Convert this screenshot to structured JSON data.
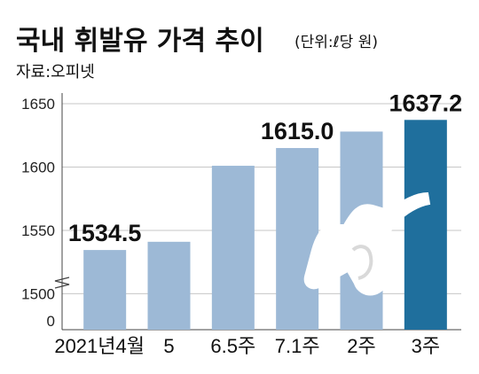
{
  "header": {
    "title": "국내 휘발유 가격 추이",
    "unit": "(단위:ℓ당 원)",
    "source": "자료:오피넷"
  },
  "chart_data": {
    "type": "bar",
    "title": "국내 휘발유 가격 추이",
    "unit": "(단위:ℓ당 원)",
    "categories": [
      "2021년4월",
      "5",
      "6.5주",
      "7.1주",
      "2주",
      "3주"
    ],
    "values": [
      1534.5,
      1541,
      1601,
      1615.0,
      1628,
      1637.2
    ],
    "data_labels": [
      "1534.5",
      "",
      "",
      "1615.0",
      "",
      "1637.2"
    ],
    "y_ticks": [
      "1650",
      "1600",
      "1550",
      "1500",
      "0"
    ],
    "y_tick_values": [
      1650,
      1600,
      1550,
      1500,
      0
    ],
    "ylim": [
      1480,
      1650
    ],
    "axis_break": true,
    "colors": {
      "bar": "#9db9d6",
      "highlight_bar": "#1f6f9d",
      "grid": "#c7c7c7"
    },
    "highlight_index": 5,
    "decoration": "fuel-nozzle-icon"
  }
}
